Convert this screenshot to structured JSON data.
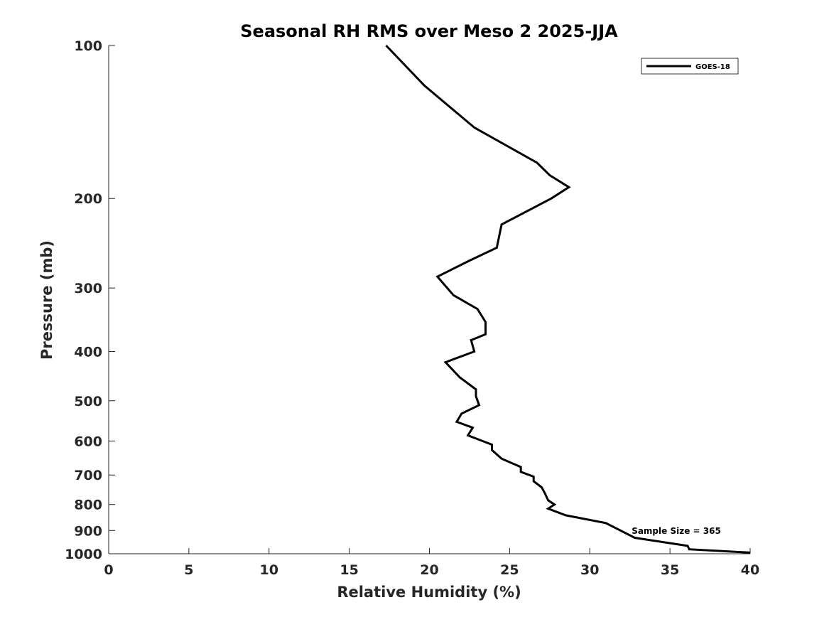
{
  "chart_data": {
    "type": "line",
    "title": "Seasonal RH RMS over Meso 2  2025-JJA",
    "xlabel": "Relative Humidity (%)",
    "ylabel": "Pressure (mb)",
    "xlim": [
      0,
      40
    ],
    "ylim": [
      100,
      1000
    ],
    "yscale": "log",
    "yreversed": true,
    "grid": false,
    "legend_position": "top-right",
    "x_ticks": [
      "0",
      "5",
      "10",
      "15",
      "20",
      "25",
      "30",
      "35",
      "40"
    ],
    "y_ticks": [
      "100",
      "200",
      "300",
      "400",
      "500",
      "600",
      "700",
      "800",
      "900",
      "1000"
    ],
    "annotation": "Sample Size = 365",
    "series": [
      {
        "name": "GOES-18",
        "color": "#000000",
        "points": [
          [
            17.3,
            100
          ],
          [
            19.7,
            120
          ],
          [
            22.8,
            145
          ],
          [
            26.7,
            170
          ],
          [
            27.5,
            180
          ],
          [
            28.7,
            190
          ],
          [
            27.6,
            200
          ],
          [
            24.5,
            225
          ],
          [
            24.2,
            250
          ],
          [
            22.5,
            265
          ],
          [
            20.5,
            285
          ],
          [
            21.5,
            310
          ],
          [
            23.0,
            330
          ],
          [
            23.5,
            350
          ],
          [
            23.5,
            370
          ],
          [
            22.6,
            380
          ],
          [
            22.8,
            400
          ],
          [
            21.0,
            420
          ],
          [
            21.9,
            450
          ],
          [
            22.9,
            475
          ],
          [
            22.9,
            490
          ],
          [
            23.1,
            510
          ],
          [
            22.0,
            530
          ],
          [
            21.7,
            550
          ],
          [
            22.7,
            565
          ],
          [
            22.4,
            585
          ],
          [
            23.9,
            610
          ],
          [
            23.9,
            625
          ],
          [
            24.5,
            650
          ],
          [
            25.7,
            675
          ],
          [
            25.7,
            690
          ],
          [
            26.5,
            705
          ],
          [
            26.5,
            720
          ],
          [
            27.0,
            740
          ],
          [
            27.2,
            760
          ],
          [
            27.4,
            785
          ],
          [
            27.8,
            800
          ],
          [
            27.4,
            815
          ],
          [
            28.5,
            840
          ],
          [
            31.0,
            870
          ],
          [
            32.8,
            930
          ],
          [
            36.1,
            965
          ],
          [
            36.2,
            980
          ],
          [
            40.0,
            995
          ]
        ]
      }
    ]
  }
}
